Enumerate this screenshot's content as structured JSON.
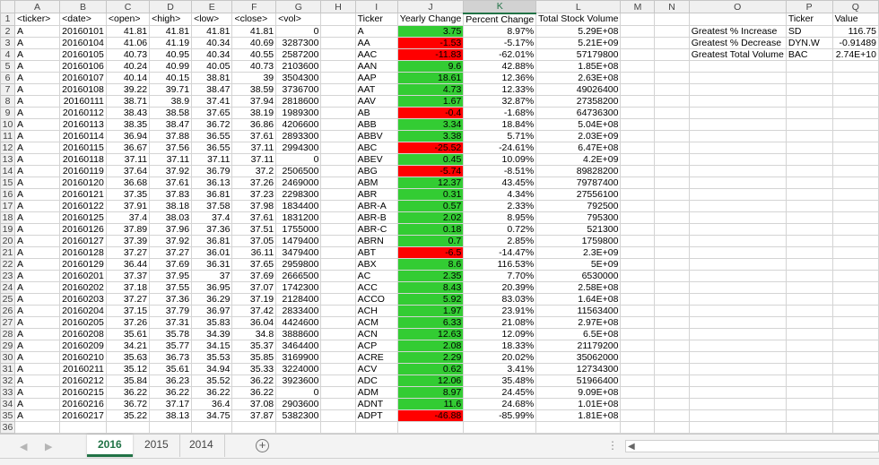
{
  "columns": [
    {
      "label": ""
    },
    {
      "label": "A"
    },
    {
      "label": "B"
    },
    {
      "label": "C"
    },
    {
      "label": "D"
    },
    {
      "label": "E"
    },
    {
      "label": "F"
    },
    {
      "label": "G"
    },
    {
      "label": "H"
    },
    {
      "label": "I"
    },
    {
      "label": "J"
    },
    {
      "label": "K"
    },
    {
      "label": "L"
    },
    {
      "label": "M"
    },
    {
      "label": "N"
    },
    {
      "label": "O"
    },
    {
      "label": "P"
    },
    {
      "label": "Q"
    }
  ],
  "selected_column": "K",
  "stock_headers": [
    "<ticker>",
    "<date>",
    "<open>",
    "<high>",
    "<low>",
    "<close>",
    "<vol>"
  ],
  "stock_rows": [
    [
      "A",
      "20160101",
      "41.81",
      "41.81",
      "41.81",
      "41.81",
      "0"
    ],
    [
      "A",
      "20160104",
      "41.06",
      "41.19",
      "40.34",
      "40.69",
      "3287300"
    ],
    [
      "A",
      "20160105",
      "40.73",
      "40.95",
      "40.34",
      "40.55",
      "2587200"
    ],
    [
      "A",
      "20160106",
      "40.24",
      "40.99",
      "40.05",
      "40.73",
      "2103600"
    ],
    [
      "A",
      "20160107",
      "40.14",
      "40.15",
      "38.81",
      "39",
      "3504300"
    ],
    [
      "A",
      "20160108",
      "39.22",
      "39.71",
      "38.47",
      "38.59",
      "3736700"
    ],
    [
      "A",
      "20160111",
      "38.71",
      "38.9",
      "37.41",
      "37.94",
      "2818600"
    ],
    [
      "A",
      "20160112",
      "38.43",
      "38.58",
      "37.65",
      "38.19",
      "1989300"
    ],
    [
      "A",
      "20160113",
      "38.35",
      "38.47",
      "36.72",
      "36.86",
      "4206600"
    ],
    [
      "A",
      "20160114",
      "36.94",
      "37.88",
      "36.55",
      "37.61",
      "2893300"
    ],
    [
      "A",
      "20160115",
      "36.67",
      "37.56",
      "36.55",
      "37.11",
      "2994300"
    ],
    [
      "A",
      "20160118",
      "37.11",
      "37.11",
      "37.11",
      "37.11",
      "0"
    ],
    [
      "A",
      "20160119",
      "37.64",
      "37.92",
      "36.79",
      "37.2",
      "2506500"
    ],
    [
      "A",
      "20160120",
      "36.68",
      "37.61",
      "36.13",
      "37.26",
      "2469000"
    ],
    [
      "A",
      "20160121",
      "37.35",
      "37.83",
      "36.81",
      "37.23",
      "2298300"
    ],
    [
      "A",
      "20160122",
      "37.91",
      "38.18",
      "37.58",
      "37.98",
      "1834400"
    ],
    [
      "A",
      "20160125",
      "37.4",
      "38.03",
      "37.4",
      "37.61",
      "1831200"
    ],
    [
      "A",
      "20160126",
      "37.89",
      "37.96",
      "37.36",
      "37.51",
      "1755000"
    ],
    [
      "A",
      "20160127",
      "37.39",
      "37.92",
      "36.81",
      "37.05",
      "1479400"
    ],
    [
      "A",
      "20160128",
      "37.27",
      "37.27",
      "36.01",
      "36.11",
      "3479400"
    ],
    [
      "A",
      "20160129",
      "36.44",
      "37.69",
      "36.31",
      "37.65",
      "2959800"
    ],
    [
      "A",
      "20160201",
      "37.37",
      "37.95",
      "37",
      "37.69",
      "2666500"
    ],
    [
      "A",
      "20160202",
      "37.18",
      "37.55",
      "36.95",
      "37.07",
      "1742300"
    ],
    [
      "A",
      "20160203",
      "37.27",
      "37.36",
      "36.29",
      "37.19",
      "2128400"
    ],
    [
      "A",
      "20160204",
      "37.15",
      "37.79",
      "36.97",
      "37.42",
      "2833400"
    ],
    [
      "A",
      "20160205",
      "37.26",
      "37.31",
      "35.83",
      "36.04",
      "4424600"
    ],
    [
      "A",
      "20160208",
      "35.61",
      "35.78",
      "34.39",
      "34.8",
      "3888600"
    ],
    [
      "A",
      "20160209",
      "34.21",
      "35.77",
      "34.15",
      "35.37",
      "3464400"
    ],
    [
      "A",
      "20160210",
      "35.63",
      "36.73",
      "35.53",
      "35.85",
      "3169900"
    ],
    [
      "A",
      "20160211",
      "35.12",
      "35.61",
      "34.94",
      "35.33",
      "3224000"
    ],
    [
      "A",
      "20160212",
      "35.84",
      "36.23",
      "35.52",
      "36.22",
      "3923600"
    ],
    [
      "A",
      "20160215",
      "36.22",
      "36.22",
      "36.22",
      "36.22",
      "0"
    ],
    [
      "A",
      "20160216",
      "36.72",
      "37.17",
      "36.4",
      "37.08",
      "2903600"
    ],
    [
      "A",
      "20160217",
      "35.22",
      "38.13",
      "34.75",
      "37.87",
      "5382300"
    ]
  ],
  "summary_headers": [
    "Ticker",
    "Yearly Change",
    "Percent Change",
    "Total Stock Volume"
  ],
  "summary_rows": [
    [
      "A",
      "3.75",
      "8.97%",
      "5.29E+08"
    ],
    [
      "AA",
      "-1.53",
      "-5.17%",
      "5.21E+09"
    ],
    [
      "AAC",
      "-11.83",
      "-62.01%",
      "57179800"
    ],
    [
      "AAN",
      "9.6",
      "42.88%",
      "1.85E+08"
    ],
    [
      "AAP",
      "18.61",
      "12.36%",
      "2.63E+08"
    ],
    [
      "AAT",
      "4.73",
      "12.33%",
      "49026400"
    ],
    [
      "AAV",
      "1.67",
      "32.87%",
      "27358200"
    ],
    [
      "AB",
      "-0.4",
      "-1.68%",
      "64736300"
    ],
    [
      "ABB",
      "3.34",
      "18.84%",
      "5.04E+08"
    ],
    [
      "ABBV",
      "3.38",
      "5.71%",
      "2.03E+09"
    ],
    [
      "ABC",
      "-25.52",
      "-24.61%",
      "6.47E+08"
    ],
    [
      "ABEV",
      "0.45",
      "10.09%",
      "4.2E+09"
    ],
    [
      "ABG",
      "-5.74",
      "-8.51%",
      "89828200"
    ],
    [
      "ABM",
      "12.37",
      "43.45%",
      "79787400"
    ],
    [
      "ABR",
      "0.31",
      "4.34%",
      "27556100"
    ],
    [
      "ABR-A",
      "0.57",
      "2.33%",
      "792500"
    ],
    [
      "ABR-B",
      "2.02",
      "8.95%",
      "795300"
    ],
    [
      "ABR-C",
      "0.18",
      "0.72%",
      "521300"
    ],
    [
      "ABRN",
      "0.7",
      "2.85%",
      "1759800"
    ],
    [
      "ABT",
      "-6.5",
      "-14.47%",
      "2.3E+09"
    ],
    [
      "ABX",
      "8.6",
      "116.53%",
      "5E+09"
    ],
    [
      "AC",
      "2.35",
      "7.70%",
      "6530000"
    ],
    [
      "ACC",
      "8.43",
      "20.39%",
      "2.58E+08"
    ],
    [
      "ACCO",
      "5.92",
      "83.03%",
      "1.64E+08"
    ],
    [
      "ACH",
      "1.97",
      "23.91%",
      "11563400"
    ],
    [
      "ACM",
      "6.33",
      "21.08%",
      "2.97E+08"
    ],
    [
      "ACN",
      "12.63",
      "12.09%",
      "6.5E+08"
    ],
    [
      "ACP",
      "2.08",
      "18.33%",
      "21179200"
    ],
    [
      "ACRE",
      "2.29",
      "20.02%",
      "35062000"
    ],
    [
      "ACV",
      "0.62",
      "3.41%",
      "12734300"
    ],
    [
      "ADC",
      "12.06",
      "35.48%",
      "51966400"
    ],
    [
      "ADM",
      "8.97",
      "24.45%",
      "9.09E+08"
    ],
    [
      "ADNT",
      "11.6",
      "24.68%",
      "1.01E+08"
    ],
    [
      "ADPT",
      "-46.88",
      "-85.99%",
      "1.81E+08"
    ]
  ],
  "greatest_headers": [
    "Ticker",
    "Value"
  ],
  "greatest_rows": [
    [
      "Greatest % Increase",
      "SD",
      "116.75"
    ],
    [
      "Greatest % Decrease",
      "DYN.W",
      "-0.91489"
    ],
    [
      "Greatest Total Volume",
      "BAC",
      "2.74E+10"
    ]
  ],
  "sheet_tabs": [
    {
      "label": "2016",
      "active": true
    },
    {
      "label": "2015",
      "active": false
    },
    {
      "label": "2014",
      "active": false
    }
  ],
  "add_sheet_symbol": "+",
  "tab_split_symbol": "⋮",
  "colors": {
    "positive": "#33cc33",
    "negative": "#ff0000",
    "accent": "#217346"
  }
}
